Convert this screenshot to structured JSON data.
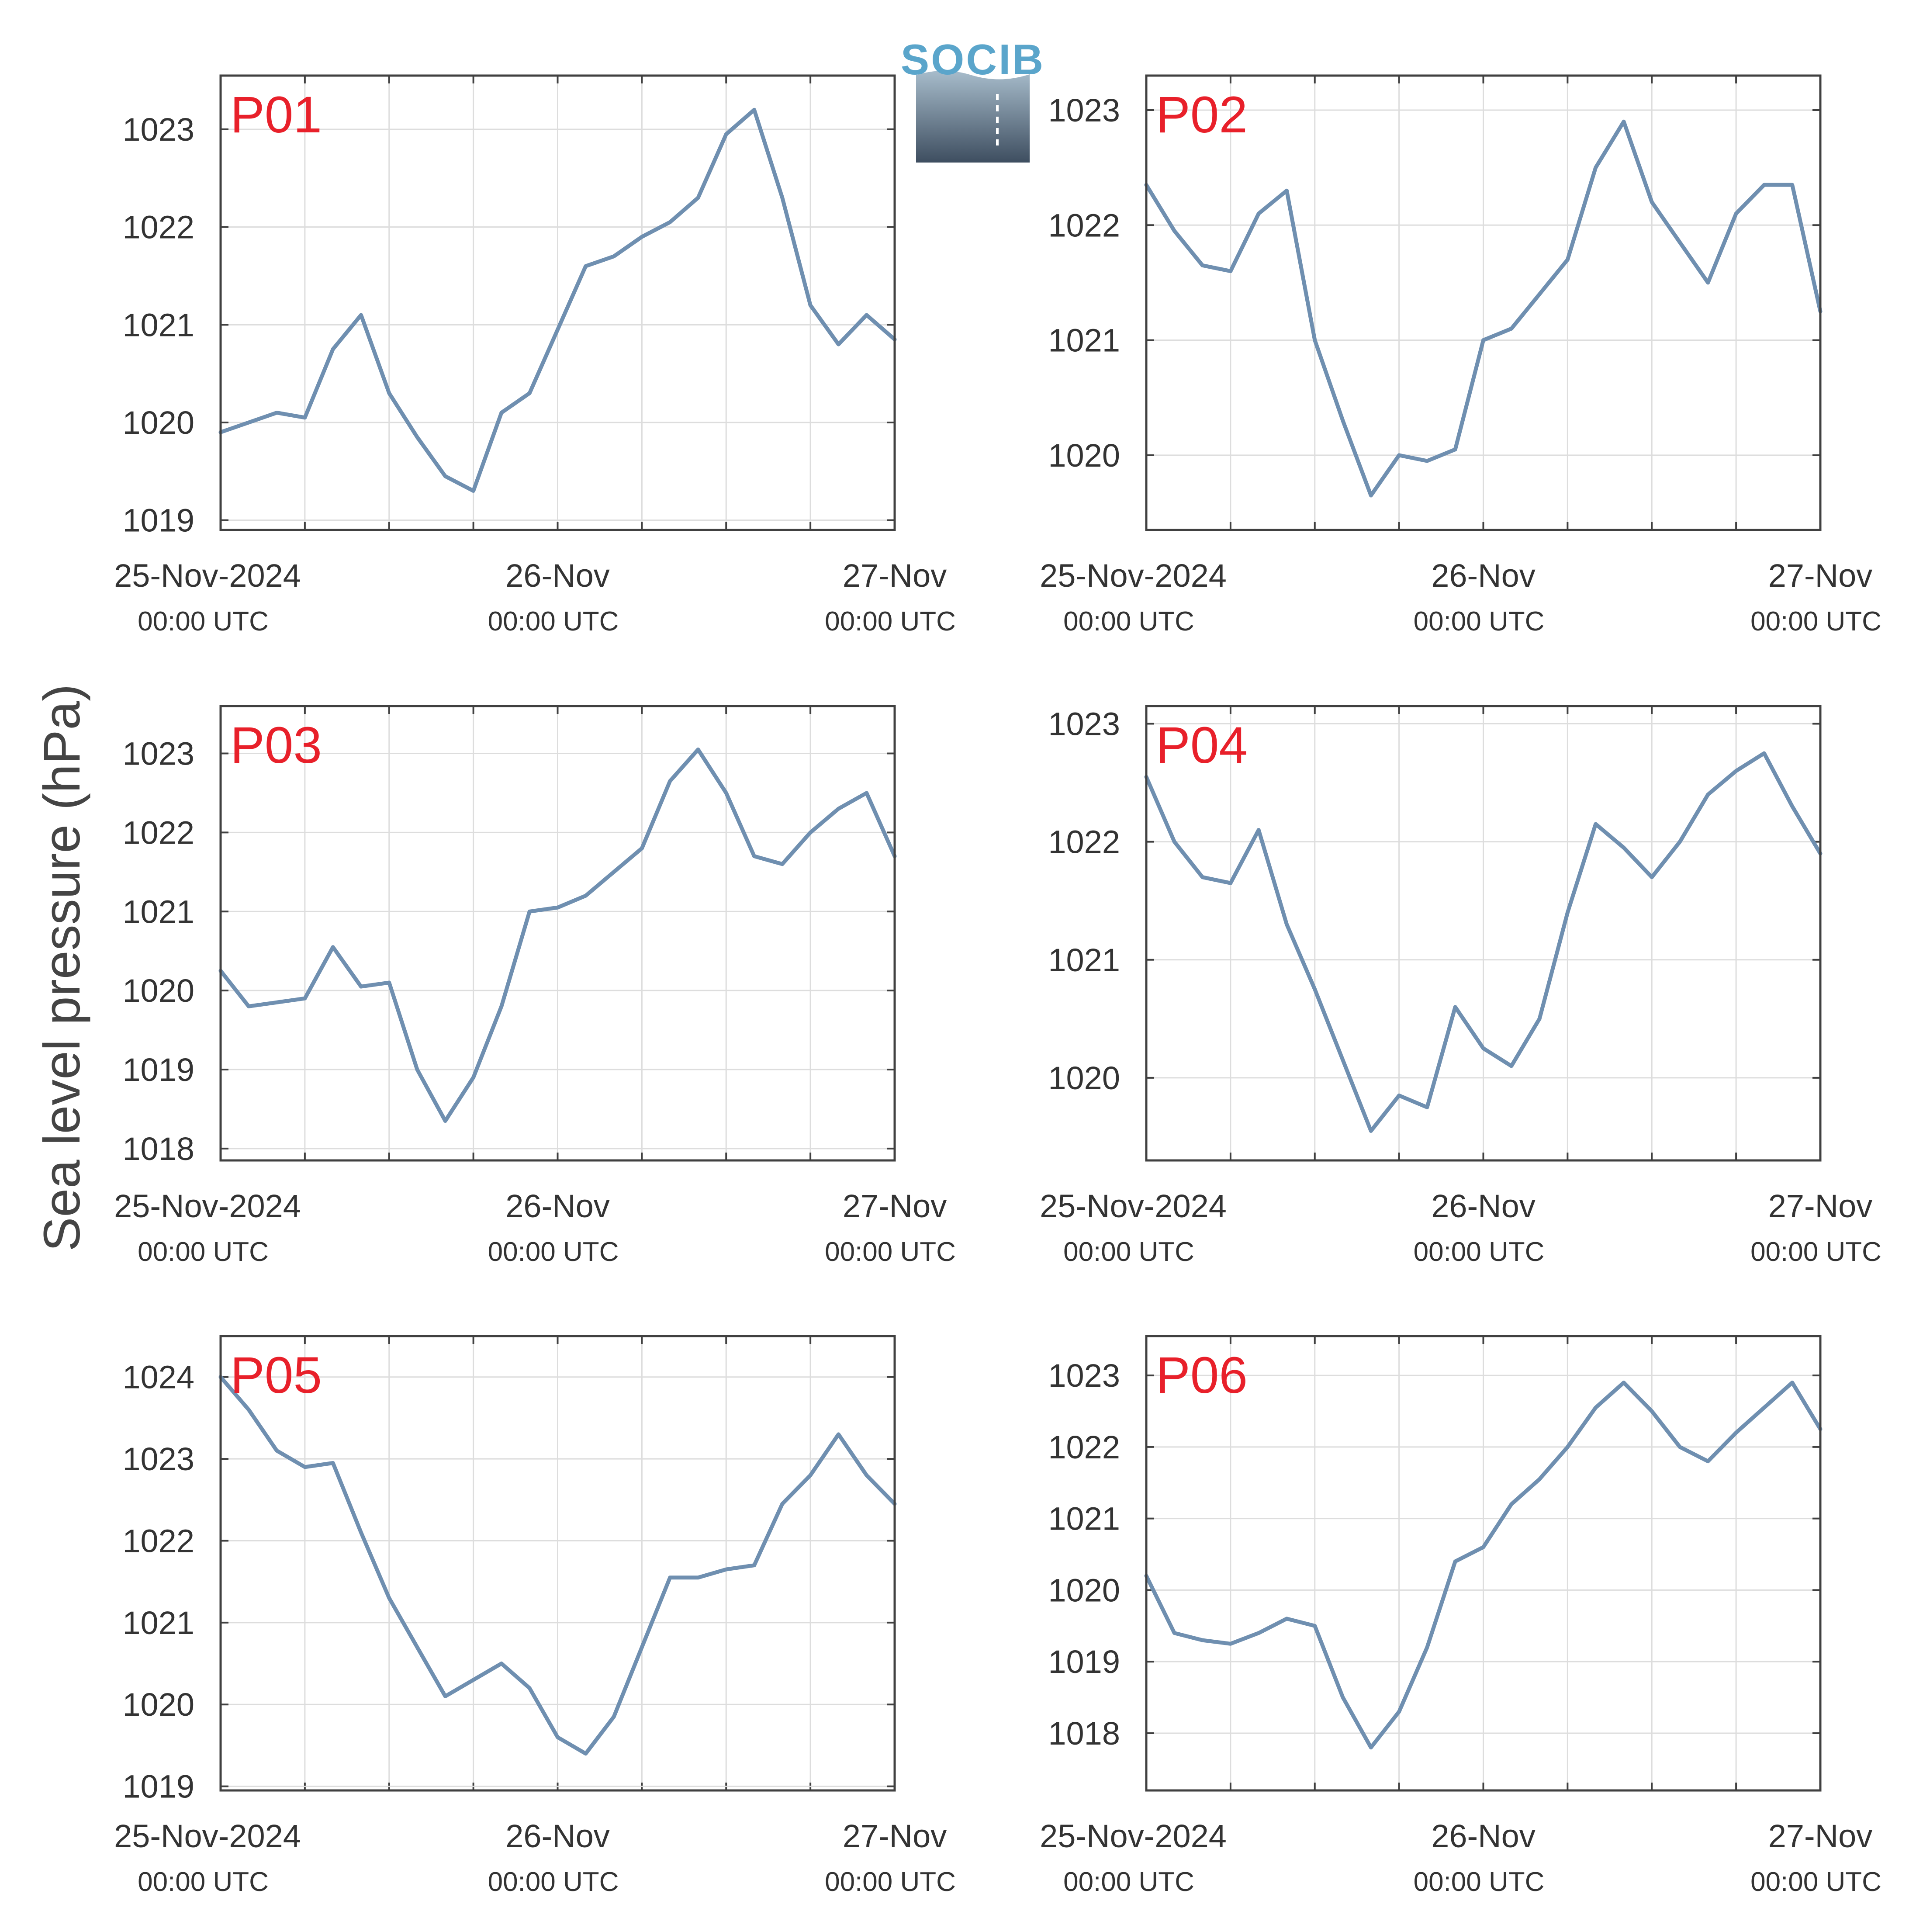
{
  "figure": {
    "ylabel": "Sea level pressure (hPa)",
    "logo_text": "SOCIB",
    "x_ticks": [
      {
        "day": 0,
        "date_label": "25-Nov-2024",
        "time_label": "00:00 UTC"
      },
      {
        "day": 1,
        "date_label": "26-Nov",
        "time_label": "00:00 UTC"
      },
      {
        "day": 2,
        "date_label": "27-Nov",
        "time_label": "00:00 UTC"
      }
    ],
    "colors": {
      "line": "#6f8fb0",
      "panel_label": "#e8202a",
      "axis": "#404040",
      "grid": "#dddddd",
      "text": "#333333"
    }
  },
  "chart_data": [
    {
      "type": "line",
      "title": "P01",
      "xlabel": "",
      "ylabel": "",
      "xlim": [
        "2024-11-25 00:00",
        "2024-11-27 00:00"
      ],
      "ylim": [
        1018.9,
        1023.55
      ],
      "yticks": [
        1019,
        1020,
        1021,
        1022,
        1023
      ],
      "grid": true,
      "x": [
        "2024-11-25 00:00",
        "2024-11-25 02:00",
        "2024-11-25 04:00",
        "2024-11-25 06:00",
        "2024-11-25 08:00",
        "2024-11-25 10:00",
        "2024-11-25 12:00",
        "2024-11-25 14:00",
        "2024-11-25 16:00",
        "2024-11-25 18:00",
        "2024-11-25 20:00",
        "2024-11-25 22:00",
        "2024-11-26 00:00",
        "2024-11-26 02:00",
        "2024-11-26 04:00",
        "2024-11-26 06:00",
        "2024-11-26 08:00",
        "2024-11-26 10:00",
        "2024-11-26 12:00",
        "2024-11-26 14:00",
        "2024-11-26 16:00",
        "2024-11-26 18:00",
        "2024-11-26 20:00",
        "2024-11-26 22:00",
        "2024-11-27 00:00"
      ],
      "values": [
        1019.9,
        1020.0,
        1020.1,
        1020.05,
        1020.75,
        1021.1,
        1020.3,
        1019.85,
        1019.45,
        1019.3,
        1020.1,
        1020.3,
        1020.95,
        1021.6,
        1021.7,
        1021.9,
        1022.05,
        1022.3,
        1022.95,
        1023.2,
        1022.3,
        1021.2,
        1020.8,
        1021.1,
        1020.85
      ]
    },
    {
      "type": "line",
      "title": "P02",
      "xlabel": "",
      "ylabel": "",
      "xlim": [
        "2024-11-25 00:00",
        "2024-11-27 00:00"
      ],
      "ylim": [
        1019.35,
        1023.3
      ],
      "yticks": [
        1020,
        1021,
        1022,
        1023
      ],
      "grid": true,
      "x": [
        "2024-11-25 00:00",
        "2024-11-25 02:00",
        "2024-11-25 04:00",
        "2024-11-25 06:00",
        "2024-11-25 08:00",
        "2024-11-25 10:00",
        "2024-11-25 12:00",
        "2024-11-25 14:00",
        "2024-11-25 16:00",
        "2024-11-25 18:00",
        "2024-11-25 20:00",
        "2024-11-25 22:00",
        "2024-11-26 00:00",
        "2024-11-26 02:00",
        "2024-11-26 04:00",
        "2024-11-26 06:00",
        "2024-11-26 08:00",
        "2024-11-26 10:00",
        "2024-11-26 12:00",
        "2024-11-26 14:00",
        "2024-11-26 16:00",
        "2024-11-26 18:00",
        "2024-11-26 20:00",
        "2024-11-26 22:00",
        "2024-11-27 00:00"
      ],
      "values": [
        1022.35,
        1021.95,
        1021.65,
        1021.6,
        1022.1,
        1022.3,
        1021.0,
        1020.3,
        1019.65,
        1020.0,
        1019.95,
        1020.05,
        1021.0,
        1021.1,
        1021.4,
        1021.7,
        1022.5,
        1022.9,
        1022.2,
        1021.85,
        1021.5,
        1022.1,
        1022.35,
        1022.35,
        1021.25
      ]
    },
    {
      "type": "line",
      "title": "P03",
      "xlabel": "",
      "ylabel": "",
      "xlim": [
        "2024-11-25 00:00",
        "2024-11-27 00:00"
      ],
      "ylim": [
        1017.85,
        1023.6
      ],
      "yticks": [
        1018,
        1019,
        1020,
        1021,
        1022,
        1023
      ],
      "grid": true,
      "x": [
        "2024-11-25 00:00",
        "2024-11-25 02:00",
        "2024-11-25 04:00",
        "2024-11-25 06:00",
        "2024-11-25 08:00",
        "2024-11-25 10:00",
        "2024-11-25 12:00",
        "2024-11-25 14:00",
        "2024-11-25 16:00",
        "2024-11-25 18:00",
        "2024-11-25 20:00",
        "2024-11-25 22:00",
        "2024-11-26 00:00",
        "2024-11-26 02:00",
        "2024-11-26 04:00",
        "2024-11-26 06:00",
        "2024-11-26 08:00",
        "2024-11-26 10:00",
        "2024-11-26 12:00",
        "2024-11-26 14:00",
        "2024-11-26 16:00",
        "2024-11-26 18:00",
        "2024-11-26 20:00",
        "2024-11-26 22:00",
        "2024-11-27 00:00"
      ],
      "values": [
        1020.25,
        1019.8,
        1019.85,
        1019.9,
        1020.55,
        1020.05,
        1020.1,
        1019.0,
        1018.35,
        1018.9,
        1019.8,
        1021.0,
        1021.05,
        1021.2,
        1021.5,
        1021.8,
        1022.65,
        1023.05,
        1022.5,
        1021.7,
        1021.6,
        1022.0,
        1022.3,
        1022.5,
        1021.7
      ]
    },
    {
      "type": "line",
      "title": "P04",
      "xlabel": "",
      "ylabel": "",
      "xlim": [
        "2024-11-25 00:00",
        "2024-11-27 00:00"
      ],
      "ylim": [
        1019.3,
        1023.15
      ],
      "yticks": [
        1020,
        1021,
        1022,
        1023
      ],
      "grid": true,
      "x": [
        "2024-11-25 00:00",
        "2024-11-25 02:00",
        "2024-11-25 04:00",
        "2024-11-25 06:00",
        "2024-11-25 08:00",
        "2024-11-25 10:00",
        "2024-11-25 12:00",
        "2024-11-25 14:00",
        "2024-11-25 16:00",
        "2024-11-25 18:00",
        "2024-11-25 20:00",
        "2024-11-25 22:00",
        "2024-11-26 00:00",
        "2024-11-26 02:00",
        "2024-11-26 04:00",
        "2024-11-26 06:00",
        "2024-11-26 08:00",
        "2024-11-26 10:00",
        "2024-11-26 12:00",
        "2024-11-26 14:00",
        "2024-11-26 16:00",
        "2024-11-26 18:00",
        "2024-11-26 20:00",
        "2024-11-26 22:00",
        "2024-11-27 00:00"
      ],
      "values": [
        1022.55,
        1022.0,
        1021.7,
        1021.65,
        1022.1,
        1021.3,
        1020.75,
        1020.15,
        1019.55,
        1019.85,
        1019.75,
        1020.6,
        1020.25,
        1020.1,
        1020.5,
        1021.4,
        1022.15,
        1021.95,
        1021.7,
        1022.0,
        1022.4,
        1022.6,
        1022.75,
        1022.3,
        1021.9
      ]
    },
    {
      "type": "line",
      "title": "P05",
      "xlabel": "",
      "ylabel": "",
      "xlim": [
        "2024-11-25 00:00",
        "2024-11-27 00:00"
      ],
      "ylim": [
        1018.95,
        1024.5
      ],
      "yticks": [
        1019,
        1020,
        1021,
        1022,
        1023,
        1024
      ],
      "grid": true,
      "x": [
        "2024-11-25 00:00",
        "2024-11-25 02:00",
        "2024-11-25 04:00",
        "2024-11-25 06:00",
        "2024-11-25 08:00",
        "2024-11-25 10:00",
        "2024-11-25 12:00",
        "2024-11-25 14:00",
        "2024-11-25 16:00",
        "2024-11-25 18:00",
        "2024-11-25 20:00",
        "2024-11-25 22:00",
        "2024-11-26 00:00",
        "2024-11-26 02:00",
        "2024-11-26 04:00",
        "2024-11-26 06:00",
        "2024-11-26 08:00",
        "2024-11-26 10:00",
        "2024-11-26 12:00",
        "2024-11-26 14:00",
        "2024-11-26 16:00",
        "2024-11-26 18:00",
        "2024-11-26 20:00",
        "2024-11-26 22:00",
        "2024-11-27 00:00"
      ],
      "values": [
        1024.0,
        1023.6,
        1023.1,
        1022.9,
        1022.95,
        1022.1,
        1021.3,
        1020.7,
        1020.1,
        1020.3,
        1020.5,
        1020.2,
        1019.6,
        1019.4,
        1019.85,
        1020.7,
        1021.55,
        1021.55,
        1021.65,
        1021.7,
        1022.45,
        1022.8,
        1023.3,
        1022.8,
        1022.45
      ]
    },
    {
      "type": "line",
      "title": "P06",
      "xlabel": "",
      "ylabel": "",
      "xlim": [
        "2024-11-25 00:00",
        "2024-11-27 00:00"
      ],
      "ylim": [
        1017.2,
        1023.55
      ],
      "yticks": [
        1018,
        1019,
        1020,
        1021,
        1022,
        1023
      ],
      "grid": true,
      "x": [
        "2024-11-25 00:00",
        "2024-11-25 02:00",
        "2024-11-25 04:00",
        "2024-11-25 06:00",
        "2024-11-25 08:00",
        "2024-11-25 10:00",
        "2024-11-25 12:00",
        "2024-11-25 14:00",
        "2024-11-25 16:00",
        "2024-11-25 18:00",
        "2024-11-25 20:00",
        "2024-11-25 22:00",
        "2024-11-26 00:00",
        "2024-11-26 02:00",
        "2024-11-26 04:00",
        "2024-11-26 06:00",
        "2024-11-26 08:00",
        "2024-11-26 10:00",
        "2024-11-26 12:00",
        "2024-11-26 14:00",
        "2024-11-26 16:00",
        "2024-11-26 18:00",
        "2024-11-26 20:00",
        "2024-11-26 22:00",
        "2024-11-27 00:00"
      ],
      "values": [
        1020.2,
        1019.4,
        1019.3,
        1019.25,
        1019.4,
        1019.6,
        1019.5,
        1018.5,
        1017.8,
        1018.3,
        1019.2,
        1020.4,
        1020.6,
        1021.2,
        1021.55,
        1022.0,
        1022.55,
        1022.9,
        1022.5,
        1022.0,
        1021.8,
        1022.2,
        1022.55,
        1022.9,
        1022.25
      ]
    }
  ]
}
